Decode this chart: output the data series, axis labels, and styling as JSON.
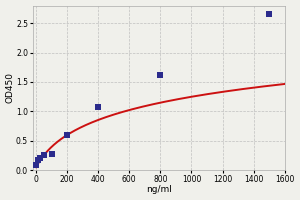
{
  "title": "",
  "xlabel": "ng/ml",
  "ylabel": "OD450",
  "xlim": [
    -20,
    1600
  ],
  "ylim": [
    0.0,
    2.8
  ],
  "xticks": [
    0,
    200,
    400,
    600,
    800,
    1000,
    1200,
    1400,
    1600
  ],
  "yticks": [
    0.0,
    0.5,
    1.0,
    1.5,
    2.0,
    2.5
  ],
  "scatter_x": [
    0,
    12.5,
    25,
    50,
    100,
    200,
    400,
    800,
    1500
  ],
  "scatter_y": [
    0.08,
    0.18,
    0.21,
    0.25,
    0.27,
    0.6,
    1.07,
    1.62,
    2.65
  ],
  "dot_color": "#2b2b8c",
  "line_color": "#cc1111",
  "background_color": "#f0f0eb",
  "grid_color": "#bbbbbb",
  "axis_bg": "#f0f0eb",
  "dot_size": 14,
  "line_width": 1.4,
  "figsize": [
    3.0,
    2.0
  ],
  "dpi": 100
}
